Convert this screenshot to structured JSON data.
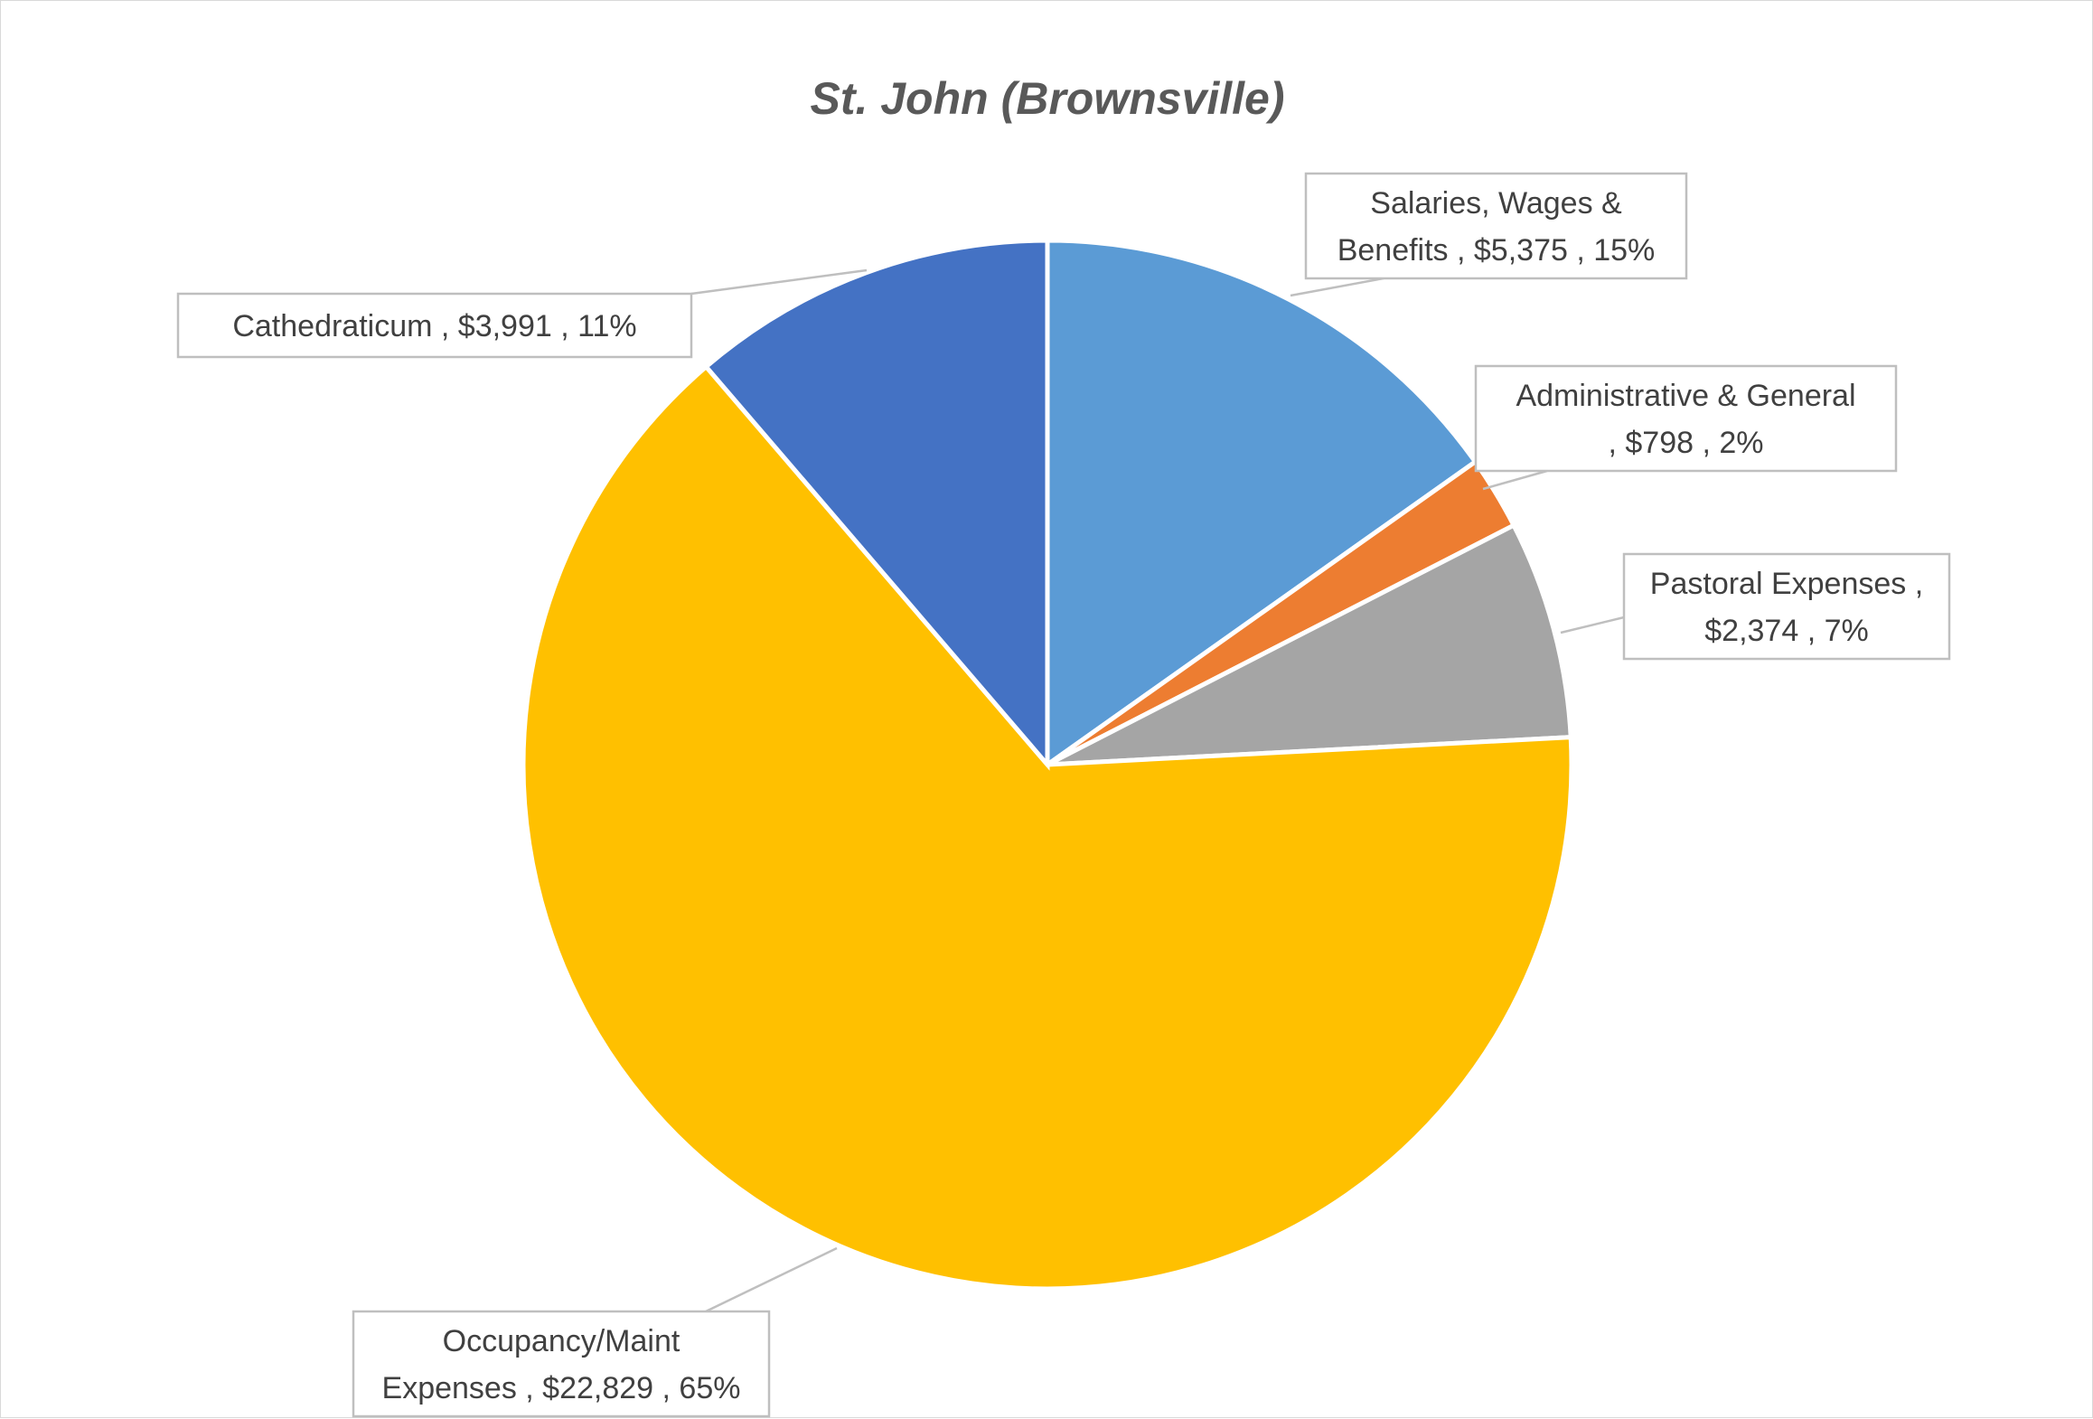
{
  "chart_data": {
    "type": "pie",
    "title": "St. John (Brownsville)",
    "currency": "$",
    "start_angle_deg": 0,
    "direction": "clockwise",
    "legend": "none",
    "slices": [
      {
        "label": "Salaries, Wages & Benefits",
        "value": 5375,
        "value_text": "$5,375",
        "percent_text": "15%",
        "color": "#5B9BD5"
      },
      {
        "label": "Administrative & General",
        "value": 798,
        "value_text": "$798",
        "percent_text": "2%",
        "color": "#ED7D31"
      },
      {
        "label": "Pastoral Expenses",
        "value": 2374,
        "value_text": "$2,374",
        "percent_text": "7%",
        "color": "#A5A5A5"
      },
      {
        "label": "Occupancy/Maint Expenses",
        "value": 22829,
        "value_text": "$22,829",
        "percent_text": "65%",
        "color": "#FFC000"
      },
      {
        "label": "Cathedraticum",
        "value": 3991,
        "value_text": "$3,991",
        "percent_text": "11%",
        "color": "#4472C4"
      }
    ],
    "data_labels": [
      [
        "Salaries, Wages &",
        "Benefits ,  $5,375 , 15%"
      ],
      [
        "Administrative & General",
        ",  $798 , 2%"
      ],
      [
        "Pastoral Expenses ,",
        "$2,374 , 7%"
      ],
      [
        "Occupancy/Maint",
        "Expenses ,  $22,829 , 65%"
      ],
      [
        "Cathedraticum ,  $3,991 , 11%"
      ]
    ]
  }
}
